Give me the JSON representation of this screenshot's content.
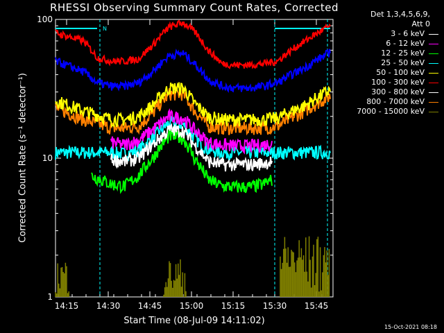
{
  "chart_data": {
    "type": "line",
    "title": "RHESSI Observing Summary Count Rates, Corrected",
    "xlabel": "Start Time (08-Jul-09 14:11:02)",
    "ylabel": "Corrected Count Rate (s⁻¹ detector⁻¹)",
    "y_scale": "log",
    "ylim": [
      1,
      100
    ],
    "y_ticks": [
      1,
      10,
      100
    ],
    "y_tick_labels": [
      "1",
      "10",
      "100"
    ],
    "xlim_minutes": [
      0,
      100
    ],
    "x_ticks": [
      {
        "t": 4,
        "label": "14:15"
      },
      {
        "t": 19,
        "label": "14:30"
      },
      {
        "t": 34,
        "label": "14:45"
      },
      {
        "t": 49,
        "label": "15:00"
      },
      {
        "t": 64,
        "label": "15:15"
      },
      {
        "t": 79,
        "label": "15:30"
      },
      {
        "t": 94,
        "label": "15:45"
      }
    ],
    "legend_header": [
      "Det 1,3,4,5,6,9,",
      "Att 0"
    ],
    "legend_placement": "right",
    "stamp": "15-Oct-2021 08:18",
    "night_marker_label": "N",
    "series": [
      {
        "name": "3 - 6 keV",
        "color": "#ffffff",
        "x": [
          20,
          25,
          30,
          35,
          41,
          46,
          50,
          55,
          60,
          65,
          70,
          75,
          78
        ],
        "y": [
          9.8,
          9.5,
          10,
          12.5,
          16,
          15.8,
          12.5,
          9.5,
          9.0,
          9.0,
          9.0,
          9.2,
          9.5
        ]
      },
      {
        "name": "6 - 12 keV",
        "color": "#ff00ff",
        "x": [
          20,
          25,
          30,
          35,
          41,
          46,
          50,
          55,
          60,
          65,
          70,
          75,
          78
        ],
        "y": [
          13,
          12.5,
          13.5,
          16,
          20,
          19.5,
          16,
          13,
          12.5,
          12.3,
          12.3,
          12.5,
          12.8
        ]
      },
      {
        "name": "12 - 25 keV",
        "color": "#00ff00",
        "x": [
          13,
          20,
          25,
          30,
          35,
          41,
          46,
          50,
          55,
          60,
          65,
          70,
          75,
          78
        ],
        "y": [
          7.5,
          6.5,
          6.3,
          7.5,
          10,
          14.5,
          14,
          10,
          7,
          6.3,
          6.2,
          6.2,
          6.5,
          7.0
        ]
      },
      {
        "name": "25 - 50 keV",
        "color": "#00ffff",
        "x": [
          0,
          12,
          20,
          25,
          30,
          35,
          41,
          46,
          50,
          55,
          60,
          65,
          70,
          75,
          80,
          90,
          99
        ],
        "y": [
          11,
          11,
          11,
          10.8,
          11.5,
          14,
          18,
          17.5,
          14,
          11.5,
          11,
          11,
          11,
          11,
          11,
          11,
          11
        ]
      },
      {
        "name": "50 - 100 keV",
        "color": "#ffff00",
        "x": [
          0,
          10,
          20,
          25,
          30,
          35,
          41,
          46,
          50,
          55,
          60,
          65,
          70,
          75,
          80,
          90,
          99
        ],
        "y": [
          26,
          22,
          19,
          19,
          20,
          24,
          32,
          32,
          25,
          20,
          19,
          19,
          19,
          19,
          19.5,
          24,
          31
        ]
      },
      {
        "name": "100 - 300 keV",
        "color": "#ff0000",
        "x": [
          0,
          10,
          15,
          20,
          25,
          30,
          35,
          41,
          46,
          50,
          55,
          60,
          65,
          70,
          75,
          80,
          90,
          99
        ],
        "y": [
          80,
          70,
          53,
          50,
          50,
          52,
          65,
          88,
          95,
          82,
          60,
          48,
          47,
          47,
          48,
          50,
          70,
          90
        ]
      },
      {
        "name": "300 - 800 keV",
        "color": "#ffffff",
        "x": [],
        "y": []
      },
      {
        "name": "800 - 7000 keV",
        "color": "#ff8000",
        "x": [
          0,
          10,
          20,
          25,
          30,
          35,
          41,
          46,
          50,
          55,
          60,
          65,
          70,
          75,
          80,
          90,
          99
        ],
        "y": [
          23,
          19,
          16.5,
          16.5,
          17,
          21,
          29,
          29,
          22,
          17,
          16.5,
          16.5,
          16.5,
          16.5,
          17,
          22,
          28
        ]
      },
      {
        "name": "7000 - 15000 keV",
        "color": "#808000",
        "x": [],
        "y": []
      }
    ],
    "blue_series": {
      "name": "",
      "color": "#0000ff",
      "x": [
        0,
        10,
        15,
        20,
        25,
        30,
        35,
        41,
        46,
        50,
        55,
        60,
        65,
        70,
        75,
        80,
        90,
        99
      ],
      "y": [
        50,
        42,
        35,
        33,
        33,
        35,
        42,
        55,
        57,
        48,
        37,
        33,
        32,
        32,
        33,
        35,
        45,
        58
      ]
    },
    "olive_bursts": [
      {
        "x": [
          0,
          5
        ],
        "ymin": 1.0,
        "ymax": 1.9
      },
      {
        "x": [
          39,
          47
        ],
        "ymin": 1.0,
        "ymax": 1.9
      },
      {
        "x": [
          81,
          99
        ],
        "ymin": 1.0,
        "ymax": 2.8
      }
    ],
    "vertical_markers": [
      16,
      79,
      98
    ],
    "cyan_top_bars": [
      {
        "x": [
          0,
          15
        ]
      },
      {
        "x": [
          79,
          99
        ]
      }
    ]
  }
}
